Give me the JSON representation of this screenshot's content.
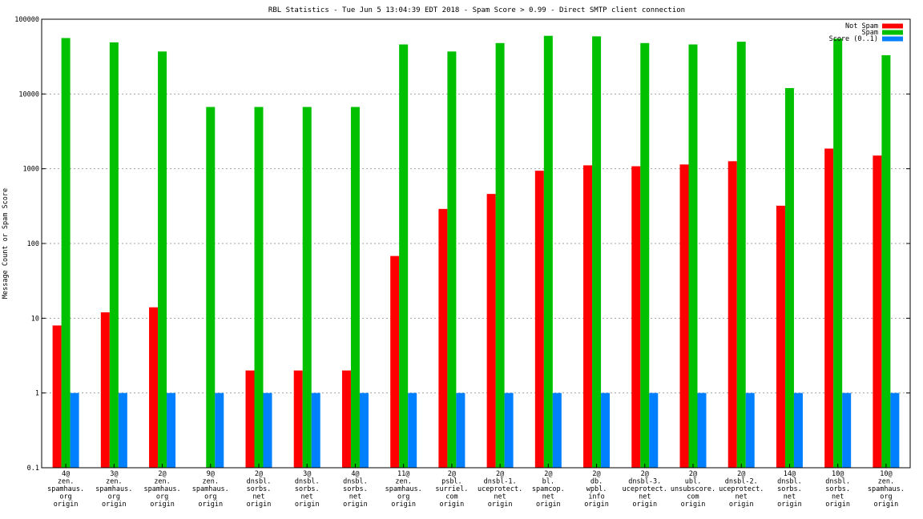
{
  "chart_data": {
    "type": "bar",
    "title": "RBL Statistics - Tue Jun  5 13:04:39 EDT 2018 - Spam Score > 0.99 - Direct SMTP client connection",
    "ylabel": "Message Count or Spam Score",
    "xlabel": "",
    "yscale": "log",
    "ylim": [
      0.1,
      100000
    ],
    "y_ticks": [
      "100000",
      "10000",
      "1000",
      "100",
      "10",
      "1",
      "0.1"
    ],
    "grid": true,
    "legend_position": "top-right",
    "categories": [
      [
        "4@",
        "zen.",
        "spamhaus.",
        "org",
        "origin"
      ],
      [
        "3@",
        "zen.",
        "spamhaus.",
        "org",
        "origin"
      ],
      [
        "2@",
        "zen.",
        "spamhaus.",
        "org",
        "origin"
      ],
      [
        "9@",
        "zen.",
        "spamhaus.",
        "org",
        "origin"
      ],
      [
        "2@",
        "dnsbl.",
        "sorbs.",
        "net",
        "origin"
      ],
      [
        "3@",
        "dnsbl.",
        "sorbs.",
        "net",
        "origin"
      ],
      [
        "4@",
        "dnsbl.",
        "sorbs.",
        "net",
        "origin"
      ],
      [
        "11@",
        "zen.",
        "spamhaus.",
        "org",
        "origin"
      ],
      [
        "2@",
        "psbl.",
        "surriel.",
        "com",
        "origin"
      ],
      [
        "2@",
        "dnsbl-1.",
        "uceprotect.",
        "net",
        "origin"
      ],
      [
        "2@",
        "bl.",
        "spamcop.",
        "net",
        "origin"
      ],
      [
        "2@",
        "db.",
        "wpbl.",
        "info",
        "origin"
      ],
      [
        "2@",
        "dnsbl-3.",
        "uceprotect.",
        "net",
        "origin"
      ],
      [
        "2@",
        "ubl.",
        "unsubscore.",
        "com",
        "origin"
      ],
      [
        "2@",
        "dnsbl-2.",
        "uceprotect.",
        "net",
        "origin"
      ],
      [
        "14@",
        "dnsbl.",
        "sorbs.",
        "net",
        "origin"
      ],
      [
        "10@",
        "dnsbl.",
        "sorbs.",
        "net",
        "origin"
      ],
      [
        "10@",
        "zen.",
        "spamhaus.",
        "org",
        "origin"
      ]
    ],
    "series": [
      {
        "name": "Not Spam",
        "color": "#ff0000",
        "values": [
          8,
          12,
          14,
          null,
          2,
          2,
          2,
          68,
          290,
          460,
          940,
          1110,
          1080,
          1140,
          1260,
          320,
          1860,
          1500
        ]
      },
      {
        "name": "Spam",
        "color": "#00c000",
        "values": [
          56000,
          49000,
          37000,
          6700,
          6700,
          6700,
          6700,
          46000,
          37000,
          48000,
          60000,
          59000,
          48000,
          46000,
          50000,
          12000,
          55000,
          33000
        ]
      },
      {
        "name": "Score (0..1)",
        "color": "#0080ff",
        "values": [
          1,
          1,
          1,
          1,
          1,
          1,
          1,
          1,
          1,
          1,
          1,
          1,
          1,
          1,
          1,
          1,
          1,
          1
        ]
      }
    ]
  }
}
